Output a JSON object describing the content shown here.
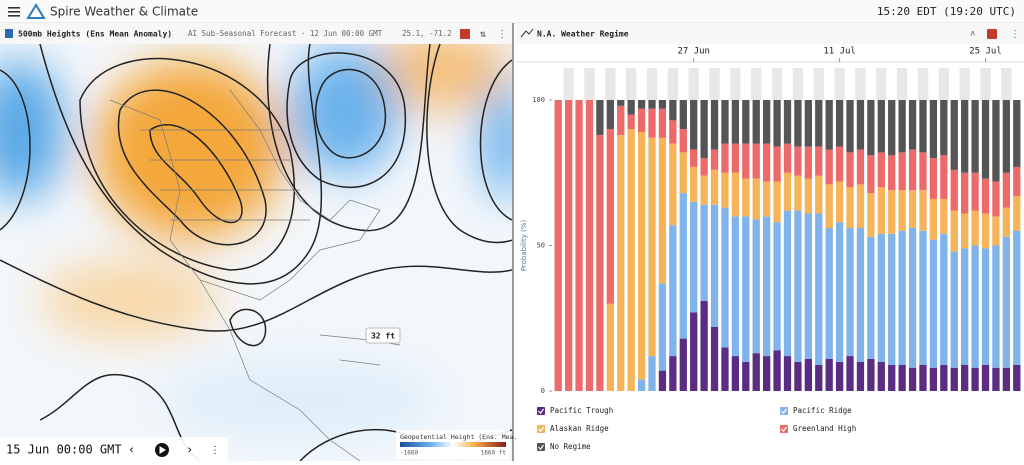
{
  "app": {
    "title": "Spire Weather & Climate",
    "clock": "15:20 EDT (19:20 UTC)"
  },
  "map_panel": {
    "title": "500mb Heights (Ens Mean Anomaly)",
    "subtitle": "AI Sub-Seasonal Forecast · 12 Jun 00:00 GMT",
    "coords": "25.1, -71.2",
    "tooltip": "32 ft",
    "colorbar_title": "Geopotential Height (Ens. Mea.",
    "colorbar_min": "-1660",
    "colorbar_max": "1660 ft",
    "time": "15 Jun 00:00 GMT"
  },
  "chart_panel": {
    "title": "N.A. Weather Regime"
  },
  "chart_data": {
    "type": "stacked_bar",
    "ylabel": "Probability (%)",
    "categories": [
      null,
      null,
      null,
      null,
      null,
      null,
      null,
      null,
      null,
      null,
      null,
      null,
      null,
      "27 Jun",
      null,
      null,
      null,
      null,
      null,
      null,
      null,
      null,
      null,
      null,
      null,
      null,
      null,
      "11 Jul",
      null,
      null,
      null,
      null,
      null,
      null,
      null,
      null,
      null,
      null,
      null,
      null,
      null,
      "25 Jul",
      null,
      null,
      null
    ],
    "ylim": [
      0,
      100
    ],
    "yticks": [
      0,
      50,
      100
    ],
    "legend": "bottom",
    "series": [
      {
        "name": "Pacific Trough",
        "color": "#5a2d82",
        "values": [
          0,
          0,
          0,
          0,
          0,
          0,
          0,
          0,
          0,
          0,
          7,
          12,
          18,
          27,
          31,
          22,
          15,
          12,
          10,
          13,
          12,
          14,
          12,
          10,
          11,
          9,
          11,
          10,
          12,
          10,
          11,
          10,
          9,
          9,
          8,
          9,
          8,
          9,
          8,
          9,
          8,
          9,
          8,
          8,
          9
        ]
      },
      {
        "name": "Pacific Ridge",
        "color": "#7fb3ea",
        "values": [
          0,
          0,
          0,
          0,
          0,
          0,
          0,
          0,
          4,
          12,
          30,
          45,
          50,
          38,
          33,
          42,
          48,
          48,
          50,
          46,
          48,
          44,
          50,
          52,
          50,
          52,
          45,
          48,
          44,
          46,
          42,
          44,
          45,
          46,
          48,
          46,
          44,
          45,
          40,
          40,
          42,
          40,
          42,
          45,
          46
        ]
      },
      {
        "name": "Alaskan Ridge",
        "color": "#f5b45a",
        "values": [
          0,
          0,
          0,
          0,
          0,
          30,
          88,
          90,
          85,
          75,
          50,
          28,
          14,
          12,
          10,
          12,
          12,
          15,
          13,
          14,
          12,
          14,
          13,
          12,
          12,
          13,
          15,
          14,
          14,
          15,
          15,
          16,
          15,
          14,
          13,
          14,
          14,
          12,
          14,
          12,
          12,
          12,
          10,
          10,
          12
        ]
      },
      {
        "name": "Greenland High",
        "color": "#ec6a6a",
        "values": [
          100,
          100,
          100,
          100,
          88,
          60,
          10,
          5,
          8,
          10,
          10,
          8,
          8,
          6,
          6,
          7,
          10,
          10,
          12,
          12,
          13,
          12,
          10,
          10,
          11,
          10,
          12,
          12,
          12,
          12,
          13,
          12,
          12,
          13,
          14,
          13,
          14,
          15,
          14,
          14,
          13,
          12,
          12,
          12,
          10
        ]
      },
      {
        "name": "No Regime",
        "color": "#555555",
        "values": [
          0,
          0,
          0,
          0,
          12,
          10,
          2,
          5,
          3,
          3,
          3,
          7,
          10,
          17,
          20,
          17,
          15,
          15,
          15,
          15,
          15,
          16,
          15,
          16,
          16,
          16,
          17,
          16,
          18,
          17,
          19,
          18,
          19,
          18,
          17,
          18,
          20,
          19,
          24,
          25,
          25,
          27,
          28,
          25,
          23
        ]
      }
    ]
  }
}
